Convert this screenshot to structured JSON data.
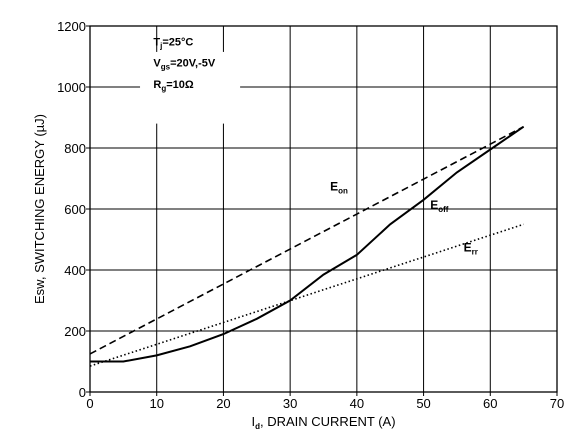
{
  "chart_data": {
    "type": "line",
    "xlabel_main": "I",
    "xlabel_sub": "d",
    "xlabel_rest": ", DRAIN CURRENT (A)",
    "ylabel": "Esw, SWITCHING ENERGY (µJ)",
    "xlim": [
      0,
      70
    ],
    "ylim": [
      0,
      1200
    ],
    "grid": true,
    "x_ticks": [
      0,
      10,
      20,
      30,
      40,
      50,
      60,
      70
    ],
    "y_ticks": [
      0,
      200,
      400,
      600,
      800,
      1000,
      1200
    ],
    "annotations": [
      {
        "main": "T",
        "sub": "j",
        "rest": "=25°C"
      },
      {
        "main": "V",
        "sub": "gs",
        "rest": "=20V,-5V"
      },
      {
        "main": "R",
        "sub": "g",
        "rest": "=10Ω"
      }
    ],
    "series": [
      {
        "name_main": "E",
        "name_sub": "on",
        "style": "dashed",
        "x": [
          0,
          65
        ],
        "y": [
          125,
          870
        ]
      },
      {
        "name_main": "E",
        "name_sub": "off",
        "style": "solid",
        "x": [
          0,
          5,
          10,
          15,
          20,
          25,
          30,
          35,
          40,
          45,
          50,
          55,
          60,
          65
        ],
        "y": [
          100,
          100,
          120,
          150,
          190,
          240,
          300,
          385,
          450,
          550,
          630,
          720,
          795,
          870
        ]
      },
      {
        "name_main": "E",
        "name_sub": "rr",
        "style": "dotted",
        "x": [
          0,
          65
        ],
        "y": [
          85,
          550
        ]
      }
    ]
  }
}
